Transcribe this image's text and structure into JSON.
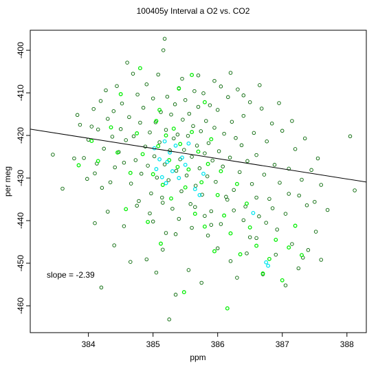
{
  "chart_data": {
    "type": "scatter",
    "title": "100405y   Interval a O2 vs. CO2",
    "xlabel": "ppm",
    "ylabel": "per meg",
    "xlim": [
      383.1,
      388.3
    ],
    "ylim": [
      -466.3,
      -395.3
    ],
    "x_ticks": [
      384,
      385,
      386,
      387,
      388
    ],
    "x_tick_labels": [
      "384",
      "385",
      "386",
      "387",
      "388"
    ],
    "y_ticks": [
      -400,
      -410,
      -420,
      -430,
      -440,
      -450,
      -460
    ],
    "y_tick_labels": [
      "-400",
      "-410",
      "-420",
      "-430",
      "-440",
      "-450",
      "-460"
    ],
    "grid": false,
    "annotation": "slope =  -2.39",
    "fit_line": {
      "slope": -2.39,
      "intercept": 497.1
    },
    "series": [
      {
        "color": "#006400",
        "marker": "open-circle",
        "points": [
          [
            383.45,
            -424.5
          ],
          [
            383.6,
            -432.5
          ],
          [
            383.78,
            -425.4
          ],
          [
            383.83,
            -415.2
          ],
          [
            383.87,
            -417.5
          ],
          [
            383.93,
            -425.3
          ],
          [
            383.98,
            -430.2
          ],
          [
            384.0,
            -421.0
          ],
          [
            384.05,
            -417.9
          ],
          [
            384.08,
            -413.8
          ],
          [
            384.1,
            -428.9
          ],
          [
            384.13,
            -426.6
          ],
          [
            384.15,
            -418.6
          ],
          [
            384.19,
            -411.9
          ],
          [
            384.21,
            -432.3
          ],
          [
            384.24,
            -423.1
          ],
          [
            384.27,
            -409.4
          ],
          [
            384.3,
            -416.1
          ],
          [
            384.34,
            -431.0
          ],
          [
            384.37,
            -420.3
          ],
          [
            384.39,
            -414.3
          ],
          [
            384.41,
            -427.5
          ],
          [
            384.44,
            -408.4
          ],
          [
            384.47,
            -423.9
          ],
          [
            384.5,
            -418.5
          ],
          [
            384.52,
            -412.5
          ],
          [
            384.55,
            -426.4
          ],
          [
            384.58,
            -421.1
          ],
          [
            384.6,
            -402.9
          ],
          [
            384.63,
            -415.7
          ],
          [
            384.66,
            -431.3
          ],
          [
            384.69,
            -405.5
          ],
          [
            384.7,
            -420.2
          ],
          [
            384.73,
            -425.8
          ],
          [
            384.76,
            -410.4
          ],
          [
            384.78,
            -435.4
          ],
          [
            384.8,
            -417.0
          ],
          [
            384.82,
            -429.0
          ],
          [
            384.85,
            -413.5
          ],
          [
            384.88,
            -422.6
          ],
          [
            384.9,
            -408.0
          ],
          [
            384.92,
            -427.1
          ],
          [
            384.95,
            -419.3
          ],
          [
            384.97,
            -433.6
          ],
          [
            385.0,
            -411.3
          ],
          [
            385.02,
            -424.9
          ],
          [
            385.04,
            -416.9
          ],
          [
            385.06,
            -429.9
          ],
          [
            385.08,
            -405.7
          ],
          [
            385.1,
            -421.6
          ],
          [
            385.12,
            -414.5
          ],
          [
            385.14,
            -434.6
          ],
          [
            385.16,
            -400.0
          ],
          [
            385.18,
            -426.8
          ],
          [
            385.2,
            -418.7
          ],
          [
            385.22,
            -410.9
          ],
          [
            385.24,
            -430.5
          ],
          [
            385.26,
            -423.5
          ],
          [
            385.28,
            -415.1
          ],
          [
            385.3,
            -437.2
          ],
          [
            385.32,
            -420.7
          ],
          [
            385.34,
            -412.7
          ],
          [
            385.36,
            -428.3
          ],
          [
            385.38,
            -419.8
          ],
          [
            385.4,
            -408.9
          ],
          [
            385.42,
            -425.6
          ],
          [
            385.44,
            -433.1
          ],
          [
            385.46,
            -416.3
          ],
          [
            385.48,
            -423.4
          ],
          [
            385.5,
            -411.7
          ],
          [
            385.52,
            -429.4
          ],
          [
            385.54,
            -420.1
          ],
          [
            385.56,
            -414.9
          ],
          [
            385.58,
            -436.1
          ],
          [
            385.6,
            -425.0
          ],
          [
            385.62,
            -417.8
          ],
          [
            385.64,
            -409.6
          ],
          [
            385.66,
            -431.8
          ],
          [
            385.68,
            -422.4
          ],
          [
            385.7,
            -413.3
          ],
          [
            385.72,
            -427.7
          ],
          [
            385.74,
            -419.0
          ],
          [
            385.76,
            -433.9
          ],
          [
            385.78,
            -410.1
          ],
          [
            385.8,
            -424.2
          ],
          [
            385.82,
            -416.6
          ],
          [
            385.84,
            -429.6
          ],
          [
            385.86,
            -421.8
          ],
          [
            385.88,
            -412.9
          ],
          [
            385.9,
            -437.8
          ],
          [
            385.92,
            -425.9
          ],
          [
            385.95,
            -418.2
          ],
          [
            385.97,
            -430.9
          ],
          [
            386.0,
            -414.0
          ],
          [
            386.02,
            -423.7
          ],
          [
            386.05,
            -408.5
          ],
          [
            386.08,
            -427.3
          ],
          [
            386.1,
            -419.6
          ],
          [
            386.13,
            -434.4
          ],
          [
            386.16,
            -411.0
          ],
          [
            386.19,
            -425.2
          ],
          [
            386.22,
            -416.8
          ],
          [
            386.25,
            -432.8
          ],
          [
            386.28,
            -420.6
          ],
          [
            386.31,
            -409.2
          ],
          [
            386.34,
            -428.6
          ],
          [
            386.37,
            -422.3
          ],
          [
            386.4,
            -415.4
          ],
          [
            386.43,
            -436.7
          ],
          [
            386.46,
            -426.0
          ],
          [
            386.5,
            -412.2
          ],
          [
            386.53,
            -431.4
          ],
          [
            386.56,
            -419.4
          ],
          [
            386.6,
            -424.6
          ],
          [
            386.64,
            -439.0
          ],
          [
            386.68,
            -413.7
          ],
          [
            386.72,
            -429.2
          ],
          [
            386.76,
            -421.4
          ],
          [
            386.8,
            -434.9
          ],
          [
            386.84,
            -417.2
          ],
          [
            386.88,
            -426.9
          ],
          [
            386.92,
            -442.1
          ],
          [
            386.96,
            -431.1
          ],
          [
            387.0,
            -418.9
          ],
          [
            387.05,
            -438.4
          ],
          [
            387.1,
            -427.8
          ],
          [
            387.15,
            -445.5
          ],
          [
            387.2,
            -423.2
          ],
          [
            387.26,
            -434.1
          ],
          [
            387.32,
            -448.7
          ],
          [
            387.38,
            -436.4
          ],
          [
            387.45,
            -428.1
          ],
          [
            387.52,
            -442.6
          ],
          [
            387.6,
            -431.6
          ],
          [
            387.7,
            -437.5
          ],
          [
            388.05,
            -420.2
          ],
          [
            388.12,
            -432.9
          ],
          [
            384.2,
            -455.7
          ],
          [
            384.4,
            -445.8
          ],
          [
            384.65,
            -449.7
          ],
          [
            384.9,
            -449.1
          ],
          [
            385.05,
            -452.2
          ],
          [
            385.15,
            -446.8
          ],
          [
            385.25,
            -463.2
          ],
          [
            385.35,
            -457.4
          ],
          [
            385.55,
            -451.6
          ],
          [
            385.75,
            -454.6
          ],
          [
            385.85,
            -443.5
          ],
          [
            386.0,
            -446.5
          ],
          [
            386.2,
            -449.5
          ],
          [
            386.3,
            -453.4
          ],
          [
            386.45,
            -447.7
          ],
          [
            386.6,
            -444.1
          ],
          [
            386.7,
            -452.6
          ],
          [
            386.9,
            -448.0
          ],
          [
            387.05,
            -455.2
          ],
          [
            387.25,
            -451.2
          ],
          [
            387.4,
            -446.9
          ],
          [
            387.6,
            -449.2
          ],
          [
            385.0,
            -440.2
          ],
          [
            385.2,
            -442.9
          ],
          [
            385.4,
            -439.6
          ],
          [
            385.6,
            -441.7
          ],
          [
            385.8,
            -438.9
          ],
          [
            386.05,
            -440.8
          ],
          [
            386.25,
            -437.6
          ],
          [
            386.5,
            -443.9
          ],
          [
            386.75,
            -440.5
          ],
          [
            384.3,
            -437.9
          ],
          [
            384.55,
            -441.3
          ],
          [
            384.75,
            -436.5
          ],
          [
            384.95,
            -438.3
          ],
          [
            385.15,
            -435.8
          ],
          [
            385.35,
            -443.2
          ],
          [
            385.65,
            -436.8
          ],
          [
            385.9,
            -441.0
          ],
          [
            386.15,
            -435.1
          ],
          [
            386.4,
            -439.9
          ],
          [
            386.6,
            -434.6
          ],
          [
            386.85,
            -437.1
          ],
          [
            387.1,
            -433.7
          ],
          [
            387.3,
            -430.4
          ],
          [
            387.5,
            -435.6
          ],
          [
            384.1,
            -440.6
          ],
          [
            385.18,
            -397.3
          ],
          [
            385.45,
            -406.7
          ],
          [
            385.7,
            -405.9
          ],
          [
            385.95,
            -407.2
          ],
          [
            386.2,
            -405.3
          ],
          [
            386.4,
            -410.6
          ],
          [
            386.65,
            -408.2
          ],
          [
            386.95,
            -412.4
          ],
          [
            387.15,
            -416.6
          ],
          [
            387.35,
            -420.7
          ],
          [
            387.55,
            -425.4
          ]
        ]
      },
      {
        "color": "#00ee00",
        "marker": "open-circle",
        "points": [
          [
            383.85,
            -427.0
          ],
          [
            384.05,
            -421.3
          ],
          [
            384.15,
            -426.0
          ],
          [
            384.35,
            -418.1
          ],
          [
            384.45,
            -424.0
          ],
          [
            384.58,
            -437.3
          ],
          [
            384.65,
            -428.8
          ],
          [
            384.75,
            -419.5
          ],
          [
            384.84,
            -424.4
          ],
          [
            384.92,
            -440.3
          ],
          [
            385.0,
            -429.1
          ],
          [
            385.05,
            -416.6
          ],
          [
            385.08,
            -422.5
          ],
          [
            385.12,
            -445.4
          ],
          [
            385.15,
            -431.6
          ],
          [
            385.2,
            -420.0
          ],
          [
            385.25,
            -425.8
          ],
          [
            385.28,
            -434.8
          ],
          [
            385.32,
            -418.4
          ],
          [
            385.38,
            -427.4
          ],
          [
            385.42,
            -422.0
          ],
          [
            385.48,
            -456.8
          ],
          [
            385.5,
            -432.2
          ],
          [
            385.55,
            -428.0
          ],
          [
            385.6,
            -419.2
          ],
          [
            385.65,
            -438.4
          ],
          [
            385.7,
            -423.8
          ],
          [
            385.75,
            -431.0
          ],
          [
            385.8,
            -441.4
          ],
          [
            385.85,
            -426.7
          ],
          [
            385.9,
            -420.9
          ],
          [
            385.95,
            -447.2
          ],
          [
            386.0,
            -434.0
          ],
          [
            386.05,
            -428.4
          ],
          [
            386.1,
            -438.8
          ],
          [
            386.15,
            -460.6
          ],
          [
            386.2,
            -443.0
          ],
          [
            386.3,
            -431.4
          ],
          [
            386.35,
            -447.9
          ],
          [
            386.45,
            -436.0
          ],
          [
            386.5,
            -441.6
          ],
          [
            386.6,
            -445.9
          ],
          [
            386.7,
            -452.4
          ],
          [
            386.8,
            -449.0
          ],
          [
            386.9,
            -444.5
          ],
          [
            387.0,
            -454.0
          ],
          [
            387.1,
            -446.3
          ],
          [
            387.2,
            -441.2
          ],
          [
            387.3,
            -448.1
          ],
          [
            384.5,
            -410.3
          ],
          [
            384.8,
            -404.2
          ],
          [
            385.1,
            -414.0
          ],
          [
            385.4,
            -409.0
          ],
          [
            385.6,
            -405.8
          ],
          [
            385.8,
            -412.2
          ]
        ]
      },
      {
        "color": "#00e5ee",
        "marker": "open-circle",
        "points": [
          [
            385.02,
            -423.0
          ],
          [
            385.05,
            -427.9
          ],
          [
            385.1,
            -425.6
          ],
          [
            385.14,
            -429.8
          ],
          [
            385.18,
            -421.4
          ],
          [
            385.2,
            -431.2
          ],
          [
            385.22,
            -426.2
          ],
          [
            385.26,
            -424.0
          ],
          [
            385.3,
            -428.4
          ],
          [
            385.35,
            -422.4
          ],
          [
            385.4,
            -430.0
          ],
          [
            385.45,
            -425.2
          ],
          [
            385.5,
            -426.9
          ],
          [
            385.55,
            -421.9
          ],
          [
            385.65,
            -432.6
          ],
          [
            385.72,
            -434.0
          ],
          [
            385.78,
            -429.0
          ],
          [
            386.55,
            -438.2
          ],
          [
            386.75,
            -449.8
          ],
          [
            386.78,
            -450.6
          ]
        ]
      }
    ]
  }
}
